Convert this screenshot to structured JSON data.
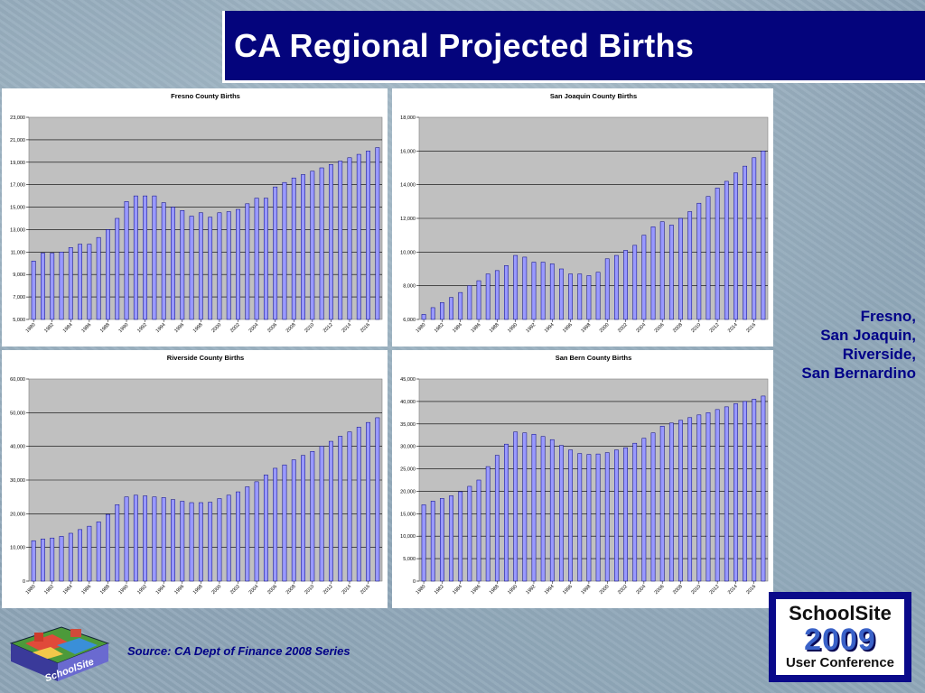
{
  "slide": {
    "title": "CA Regional Projected Births",
    "side_label": [
      "Fresno,",
      "San Joaquin,",
      "Riverside,",
      "San Bernardino"
    ],
    "source": "Source:  CA Dept of Finance  2008 Series",
    "left_logo_text": "SchoolSite",
    "right_logo": {
      "top": "SchoolSite",
      "year": "2009",
      "bottom": "User Conference"
    }
  },
  "colors": {
    "title_bg": "#04047c",
    "plot_bg": "#c0c0c0",
    "bar_fill": "#9999ff",
    "bar_stroke": "#000080",
    "label_blue": "#000088"
  },
  "chart_data": [
    {
      "type": "bar",
      "title": "Fresno County Births",
      "x_ticks": [
        "1980",
        "1982",
        "1984",
        "1986",
        "1988",
        "1990",
        "1992",
        "1994",
        "1996",
        "1998",
        "2000",
        "2002",
        "2004",
        "2006",
        "2008",
        "2010",
        "2012",
        "2014",
        "2016"
      ],
      "ylim": [
        5000,
        23000
      ],
      "y_ticks": [
        "5,000",
        "7,000",
        "9,000",
        "11,000",
        "13,000",
        "15,000",
        "17,000",
        "19,000",
        "21,000",
        "23,000"
      ],
      "grid": true,
      "values": [
        10200,
        10900,
        10900,
        11000,
        11400,
        11700,
        11700,
        12300,
        13000,
        14000,
        15500,
        16000,
        16000,
        16000,
        15400,
        15000,
        14700,
        14200,
        14500,
        14100,
        14500,
        14600,
        14800,
        15300,
        15800,
        15800,
        16800,
        17200,
        17600,
        17900,
        18200,
        18500,
        18800,
        19100,
        19400,
        19700,
        20000,
        20300
      ]
    },
    {
      "type": "bar",
      "title": "San Joaquin County Births",
      "x_ticks": [
        "1980",
        "1982",
        "1984",
        "1986",
        "1988",
        "1990",
        "1992",
        "1994",
        "1996",
        "1998",
        "2000",
        "2002",
        "2004",
        "2006",
        "2008",
        "2010",
        "2012",
        "2014",
        "2016"
      ],
      "ylim": [
        6000,
        18000
      ],
      "y_ticks": [
        "6,000",
        "8,000",
        "10,000",
        "12,000",
        "14,000",
        "16,000",
        "18,000"
      ],
      "grid": true,
      "values": [
        6300,
        6700,
        7000,
        7300,
        7600,
        8000,
        8300,
        8700,
        8900,
        9200,
        9800,
        9700,
        9400,
        9400,
        9300,
        9000,
        8700,
        8700,
        8600,
        8800,
        9600,
        9800,
        10100,
        10400,
        11000,
        11500,
        11800,
        11600,
        12000,
        12400,
        12900,
        13300,
        13800,
        14200,
        14700,
        15100,
        15600,
        16000
      ]
    },
    {
      "type": "bar",
      "title": "Riverside County Births",
      "x_ticks": [
        "1980",
        "1982",
        "1984",
        "1986",
        "1988",
        "1990",
        "1992",
        "1994",
        "1996",
        "1998",
        "2000",
        "2002",
        "2004",
        "2006",
        "2008",
        "2010",
        "2012",
        "2014",
        "2016"
      ],
      "ylim": [
        0,
        60000
      ],
      "y_ticks": [
        "0",
        "10,000",
        "20,000",
        "30,000",
        "40,000",
        "50,000",
        "60,000"
      ],
      "grid": true,
      "values": [
        12000,
        12500,
        12800,
        13300,
        14200,
        15300,
        16300,
        17600,
        19800,
        22700,
        25000,
        25500,
        25300,
        25000,
        24800,
        24200,
        23700,
        23300,
        23300,
        23400,
        24500,
        25500,
        26500,
        28000,
        29500,
        31500,
        33500,
        34500,
        36000,
        37300,
        38500,
        40000,
        41500,
        43000,
        44300,
        45700,
        47100,
        48500
      ]
    },
    {
      "type": "bar",
      "title": "San Bern County Births",
      "x_ticks": [
        "1980",
        "1982",
        "1984",
        "1986",
        "1988",
        "1990",
        "1992",
        "1994",
        "1996",
        "1998",
        "2000",
        "2002",
        "2004",
        "2006",
        "2008",
        "2010",
        "2012",
        "2014",
        "2016"
      ],
      "ylim": [
        0,
        45000
      ],
      "y_ticks": [
        "0",
        "5,000",
        "10,000",
        "15,000",
        "20,000",
        "25,000",
        "30,000",
        "35,000",
        "40,000",
        "45,000"
      ],
      "grid": true,
      "values": [
        17000,
        17800,
        18400,
        19000,
        19900,
        21100,
        22500,
        25500,
        28000,
        30500,
        33200,
        33000,
        32700,
        32200,
        31500,
        30200,
        29200,
        28400,
        28200,
        28300,
        28600,
        29200,
        29700,
        30700,
        31800,
        33000,
        34500,
        35200,
        35800,
        36400,
        37000,
        37500,
        38200,
        38800,
        39500,
        40000,
        40500,
        41200
      ]
    }
  ]
}
